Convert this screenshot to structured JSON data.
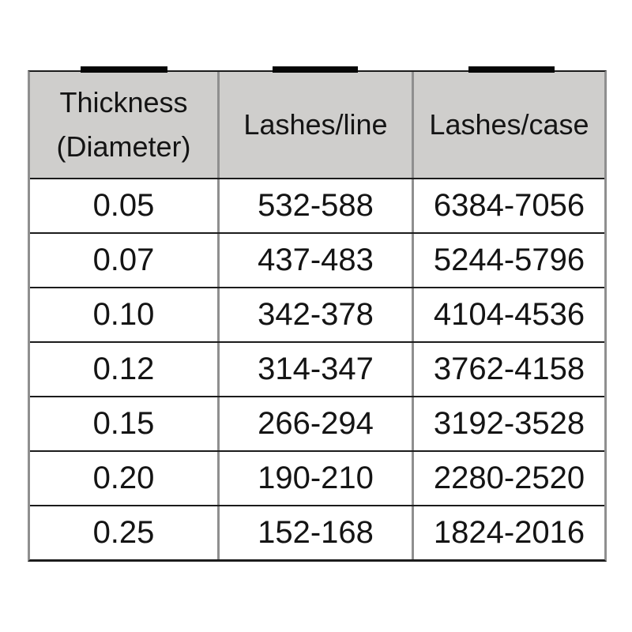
{
  "table": {
    "header": {
      "col1_line1": "Thickness",
      "col1_line2": "(Diameter)",
      "col2": "Lashes/line",
      "col3": "Lashes/case"
    },
    "rows": [
      [
        "0.05",
        "532-588",
        "6384-7056"
      ],
      [
        "0.07",
        "437-483",
        "5244-5796"
      ],
      [
        "0.10",
        "342-378",
        "4104-4536"
      ],
      [
        "0.12",
        "314-347",
        "3762-4158"
      ],
      [
        "0.15",
        "266-294",
        "3192-3528"
      ],
      [
        "0.20",
        "190-210",
        "2280-2520"
      ],
      [
        "0.25",
        "152-168",
        "1824-2016"
      ]
    ]
  },
  "chart_data": {
    "type": "table",
    "columns": [
      "Thickness (Diameter)",
      "Lashes/line",
      "Lashes/case"
    ],
    "rows": [
      {
        "thickness_diameter": "0.05",
        "lashes_per_line": "532-588",
        "lashes_per_case": "6384-7056"
      },
      {
        "thickness_diameter": "0.07",
        "lashes_per_line": "437-483",
        "lashes_per_case": "5244-5796"
      },
      {
        "thickness_diameter": "0.10",
        "lashes_per_line": "342-378",
        "lashes_per_case": "4104-4536"
      },
      {
        "thickness_diameter": "0.12",
        "lashes_per_line": "314-347",
        "lashes_per_case": "3762-4158"
      },
      {
        "thickness_diameter": "0.15",
        "lashes_per_line": "266-294",
        "lashes_per_case": "3192-3528"
      },
      {
        "thickness_diameter": "0.20",
        "lashes_per_line": "190-210",
        "lashes_per_case": "2280-2520"
      },
      {
        "thickness_diameter": "0.25",
        "lashes_per_line": "152-168",
        "lashes_per_case": "1824-2016"
      }
    ],
    "title": "",
    "legend": null,
    "notes": "header row has gray background; three black binding marks sit on the table top edge, one centered over each column"
  },
  "colors": {
    "header_background": "#cfcecc",
    "vertical_gridline": "#8f8f8f",
    "horizontal_gridline": "#1c1c1c",
    "text": "#141414",
    "binding_marks": "#060606",
    "page_background": "#ffffff"
  }
}
